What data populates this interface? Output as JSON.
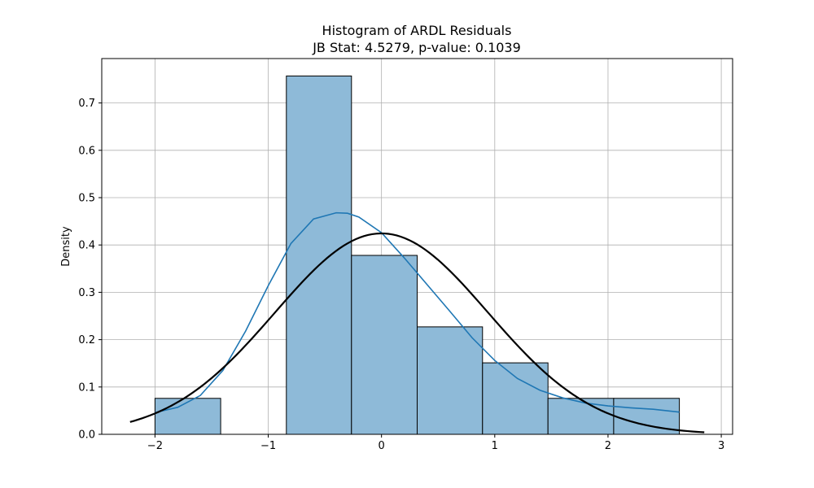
{
  "chart_data": {
    "type": "histogram",
    "title": "Histogram of ARDL Residuals",
    "subtitle": "JB Stat: 4.5279, p-value: 0.1039",
    "xlabel": "",
    "ylabel": "Density",
    "xlim": [
      -2.47,
      3.1
    ],
    "ylim": [
      0,
      0.7938
    ],
    "grid": true,
    "x_ticks": [
      {
        "value": -2,
        "label": "−2"
      },
      {
        "value": -1,
        "label": "−1"
      },
      {
        "value": 0,
        "label": "0"
      },
      {
        "value": 1,
        "label": "1"
      },
      {
        "value": 2,
        "label": "2"
      },
      {
        "value": 3,
        "label": "3"
      }
    ],
    "y_ticks": [
      {
        "value": 0.0,
        "label": "0.0"
      },
      {
        "value": 0.1,
        "label": "0.1"
      },
      {
        "value": 0.2,
        "label": "0.2"
      },
      {
        "value": 0.3,
        "label": "0.3"
      },
      {
        "value": 0.4,
        "label": "0.4"
      },
      {
        "value": 0.5,
        "label": "0.5"
      },
      {
        "value": 0.6,
        "label": "0.6"
      },
      {
        "value": 0.7,
        "label": "0.7"
      }
    ],
    "bins": [
      {
        "x0": -2.0,
        "x1": -1.42,
        "density": 0.076
      },
      {
        "x0": -1.42,
        "x1": -0.84,
        "density": 0.0
      },
      {
        "x0": -0.84,
        "x1": -0.265,
        "density": 0.757
      },
      {
        "x0": -0.265,
        "x1": 0.315,
        "density": 0.378
      },
      {
        "x0": 0.315,
        "x1": 0.892,
        "density": 0.227
      },
      {
        "x0": 0.892,
        "x1": 1.47,
        "density": 0.151
      },
      {
        "x0": 1.47,
        "x1": 2.05,
        "density": 0.076
      },
      {
        "x0": 2.05,
        "x1": 2.63,
        "density": 0.076
      }
    ],
    "kde": {
      "x": [
        -2.0,
        -1.8,
        -1.6,
        -1.4,
        -1.2,
        -1.0,
        -0.8,
        -0.6,
        -0.4,
        -0.3,
        -0.2,
        0.0,
        0.2,
        0.4,
        0.6,
        0.8,
        1.0,
        1.2,
        1.4,
        1.6,
        1.8,
        2.0,
        2.2,
        2.4,
        2.63
      ],
      "y": [
        0.046,
        0.057,
        0.082,
        0.135,
        0.218,
        0.314,
        0.403,
        0.455,
        0.468,
        0.467,
        0.459,
        0.426,
        0.373,
        0.317,
        0.261,
        0.204,
        0.156,
        0.118,
        0.093,
        0.077,
        0.066,
        0.06,
        0.056,
        0.053,
        0.047
      ]
    },
    "normal_fit": {
      "mean": 0.0,
      "std": 0.94,
      "x_range": [
        -2.22,
        2.85
      ]
    },
    "colors": {
      "bar_fill": "#8ebad8",
      "bar_edge": "#000000",
      "kde_line": "#1f77b4",
      "normal_line": "#000000",
      "grid": "#b0b0b0"
    }
  }
}
